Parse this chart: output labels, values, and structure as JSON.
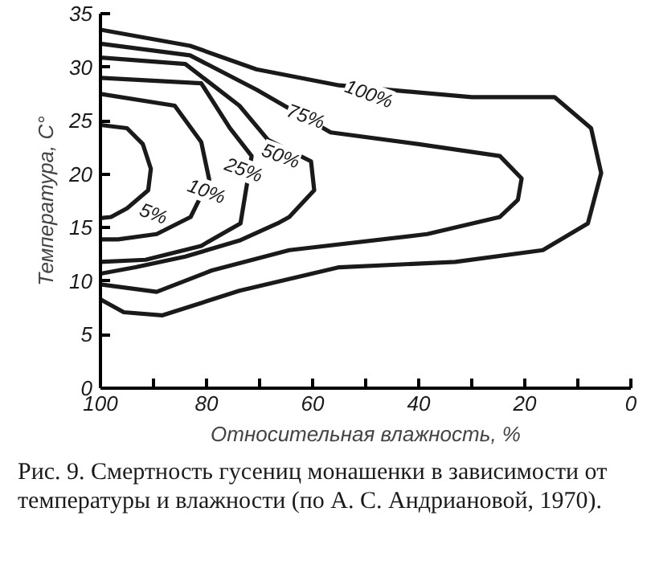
{
  "chart_data": {
    "type": "line",
    "xlabel": "Относительная влажность, %",
    "ylabel": "Температура, C°",
    "xlim": [
      100,
      0
    ],
    "ylim": [
      0,
      35
    ],
    "xticks": [
      100,
      {
        "value": 90,
        "label": null
      },
      80,
      {
        "value": 70,
        "label": null
      },
      60,
      {
        "value": 50,
        "label": null
      },
      40,
      {
        "value": 30,
        "label": null
      },
      20,
      {
        "value": 10,
        "label": null
      },
      0
    ],
    "yticks": [
      0,
      5,
      10,
      15,
      20,
      25,
      30,
      35
    ],
    "grid": false,
    "line_style": "solid",
    "series": [
      {
        "color": "#1a1a1a",
        "x": [
          100,
          83.1,
          70.6,
          55,
          30,
          14.4,
          7.5,
          5.6,
          8.1,
          16.6,
          33.1,
          55,
          73.8,
          88.4,
          95.6,
          100
        ],
        "values": [
          33.5,
          32,
          29.8,
          28.3,
          27.2,
          27.2,
          24.3,
          20.1,
          15.4,
          12.9,
          11.8,
          11.3,
          9.1,
          6.8,
          7.1,
          8.3
        ]
      },
      {
        "color": "#1a1a1a",
        "x": [
          100,
          83.1,
          70.6,
          56.6,
          40,
          24.7,
          20.6,
          21.3,
          24.7,
          38.4,
          64.4,
          79,
          89.4,
          100
        ],
        "values": [
          32.2,
          31.1,
          27.9,
          23.9,
          22.8,
          21.7,
          19.6,
          17.6,
          16,
          14.4,
          12.9,
          11,
          9,
          9.7
        ]
      },
      {
        "color": "#1a1a1a",
        "x": [
          100,
          84,
          73.8,
          68.4,
          60.3,
          59.7,
          64.4,
          66.6,
          73.8,
          84,
          93.4,
          100
        ],
        "values": [
          30.9,
          30.3,
          26.4,
          23.2,
          21.2,
          18.5,
          16,
          15.4,
          13.8,
          12.3,
          11.3,
          10.7
        ]
      },
      {
        "color": "#1a1a1a",
        "x": [
          100,
          81,
          75.6,
          71.5,
          73.6,
          81,
          91.5,
          100
        ],
        "values": [
          29,
          28.5,
          24.3,
          21.7,
          15.4,
          13.3,
          12,
          11.8
        ]
      },
      {
        "color": "#1a1a1a",
        "x": [
          100,
          86,
          81,
          79.5,
          83,
          89.4,
          96.7,
          100
        ],
        "values": [
          27.5,
          26.4,
          23,
          19.5,
          16,
          14.4,
          13.9,
          13.9
        ]
      },
      {
        "color": "#1a1a1a",
        "x": [
          100,
          95,
          92,
          90.5,
          91,
          95,
          98,
          100
        ],
        "values": [
          24.6,
          24.3,
          22.8,
          20.5,
          18.5,
          16.8,
          16,
          15.9
        ]
      }
    ],
    "annotations": [
      {
        "text": "100%",
        "x": 49.4,
        "y": 27.5
      },
      {
        "text": "75%",
        "x": 61.3,
        "y": 25.4
      },
      {
        "text": "50%",
        "x": 66,
        "y": 21.7
      },
      {
        "text": "25%",
        "x": 73,
        "y": 20.4
      },
      {
        "text": "10%",
        "x": 80,
        "y": 18.4
      },
      {
        "text": "5%",
        "x": 90,
        "y": 16.3
      },
      "Рис. 9. Смертность гусениц монашенки в зависимости от температуры и влажности (по А. С. Андриановой, 1970)."
    ]
  }
}
